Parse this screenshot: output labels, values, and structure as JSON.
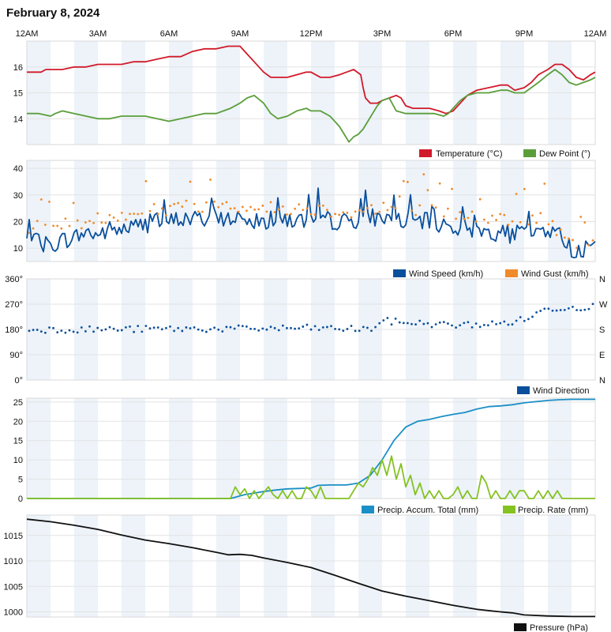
{
  "page": {
    "title": "February 8, 2024"
  },
  "time_axis": {
    "labels": [
      "12AM",
      "3AM",
      "6AM",
      "9AM",
      "12PM",
      "3PM",
      "6PM",
      "9PM",
      "12AM"
    ],
    "hours": [
      0,
      3,
      6,
      9,
      12,
      15,
      18,
      21,
      24
    ]
  },
  "chart_data": [
    {
      "type": "line",
      "ylim": [
        13,
        17
      ],
      "yticks": [
        14,
        15,
        16
      ],
      "series": [
        {
          "name": "Temperature (°C)",
          "color": "#d11a2a",
          "x": [
            0,
            0.6,
            0.8,
            1,
            1.5,
            2,
            2.5,
            3,
            3.5,
            4,
            4.5,
            5,
            5.5,
            6,
            6.5,
            7,
            7.5,
            8,
            8.5,
            9,
            9.3,
            9.6,
            10,
            10.3,
            10.6,
            11,
            11.4,
            11.8,
            12,
            12.4,
            12.8,
            13.2,
            13.5,
            13.8,
            14.1,
            14.2,
            14.3,
            14.5,
            14.8,
            15,
            15.3,
            15.6,
            15.8,
            16,
            16.3,
            16.6,
            17,
            17.4,
            17.7,
            18,
            18.3,
            18.6,
            19,
            19.5,
            20,
            20.3,
            20.6,
            21,
            21.3,
            21.6,
            22,
            22.3,
            22.6,
            22.9,
            23.2,
            23.5,
            23.8,
            24
          ],
          "y": [
            15.8,
            15.8,
            15.9,
            15.9,
            15.9,
            16,
            16,
            16.1,
            16.1,
            16.1,
            16.2,
            16.2,
            16.3,
            16.4,
            16.4,
            16.6,
            16.7,
            16.7,
            16.8,
            16.8,
            16.5,
            16.2,
            15.8,
            15.6,
            15.6,
            15.6,
            15.7,
            15.8,
            15.8,
            15.6,
            15.6,
            15.7,
            15.8,
            15.9,
            15.7,
            15.2,
            14.8,
            14.6,
            14.6,
            14.7,
            14.8,
            14.9,
            14.8,
            14.5,
            14.4,
            14.4,
            14.4,
            14.3,
            14.2,
            14.3,
            14.6,
            14.9,
            15.1,
            15.2,
            15.3,
            15.3,
            15.1,
            15.2,
            15.4,
            15.7,
            15.9,
            16.1,
            16.1,
            15.9,
            15.6,
            15.5,
            15.7,
            15.8
          ]
        },
        {
          "name": "Dew Point (°)",
          "color": "#5a9e3a",
          "x": [
            0,
            0.5,
            1,
            1.2,
            1.5,
            2,
            2.5,
            3,
            3.5,
            4,
            4.5,
            5,
            5.5,
            6,
            6.5,
            7,
            7.5,
            8,
            8.3,
            8.6,
            9,
            9.3,
            9.6,
            10,
            10.3,
            10.6,
            11,
            11.4,
            11.8,
            12,
            12.4,
            12.8,
            13,
            13.2,
            13.4,
            13.6,
            13.8,
            14,
            14.2,
            14.4,
            14.6,
            14.8,
            15,
            15.3,
            15.6,
            16,
            16.4,
            16.8,
            17.2,
            17.6,
            17.8,
            18,
            18.3,
            18.6,
            19,
            19.5,
            20,
            20.3,
            20.6,
            21,
            21.3,
            21.6,
            22,
            22.3,
            22.6,
            22.9,
            23.2,
            23.5,
            23.8,
            24
          ],
          "y": [
            14.2,
            14.2,
            14.1,
            14.2,
            14.3,
            14.2,
            14.1,
            14,
            14,
            14.1,
            14.1,
            14.1,
            14,
            13.9,
            14,
            14.1,
            14.2,
            14.2,
            14.3,
            14.4,
            14.6,
            14.8,
            14.9,
            14.6,
            14.2,
            14,
            14.1,
            14.3,
            14.4,
            14.3,
            14.3,
            14.1,
            13.9,
            13.7,
            13.4,
            13.1,
            13.3,
            13.4,
            13.6,
            13.9,
            14.2,
            14.5,
            14.7,
            14.8,
            14.3,
            14.2,
            14.2,
            14.2,
            14.2,
            14.1,
            14.2,
            14.4,
            14.7,
            14.9,
            15,
            15,
            15.1,
            15.1,
            15,
            15,
            15.2,
            15.4,
            15.7,
            15.9,
            15.7,
            15.4,
            15.3,
            15.4,
            15.5,
            15.6
          ]
        }
      ]
    },
    {
      "type": "line+scatter",
      "ylim": [
        5,
        43
      ],
      "yticks": [
        10,
        20,
        30,
        40
      ],
      "series": [
        {
          "name": "Wind Speed (km/h)",
          "color": "#0a4f9c",
          "x": [
            0,
            0.5,
            1,
            1.5,
            2,
            2.5,
            3,
            3.5,
            4,
            4.5,
            5,
            5.5,
            6,
            6.5,
            7,
            7.5,
            8,
            8.5,
            9,
            9.5,
            10,
            10.5,
            11,
            11.5,
            12,
            12.5,
            13,
            13.5,
            14,
            14.5,
            15,
            15.5,
            16,
            16.5,
            17,
            17.5,
            18,
            18.5,
            19,
            19.5,
            20,
            20.5,
            21,
            21.5,
            22,
            22.5,
            22.8,
            23,
            23.5,
            24
          ],
          "y": [
            13,
            12,
            11,
            13,
            14,
            16,
            15,
            17,
            17,
            18,
            19,
            20,
            20,
            21,
            21,
            21,
            22,
            21,
            22,
            20,
            20,
            21,
            21,
            20,
            21,
            21,
            20,
            20,
            21,
            22,
            21,
            22,
            20,
            20,
            20,
            19,
            18,
            17,
            17,
            16,
            16,
            15,
            16,
            16,
            17,
            15,
            11,
            10,
            9,
            11
          ],
          "amp": 3.4
        },
        {
          "name": "Wind Gust (km/h)",
          "color": "#f08a2a",
          "x": [
            0,
            1,
            2,
            3,
            4,
            5,
            6,
            7,
            8,
            9,
            10,
            11,
            12,
            13,
            14,
            15,
            16,
            17,
            18,
            19,
            20,
            21,
            22,
            22.8,
            23,
            24
          ],
          "y": [
            18,
            18,
            19,
            21,
            23,
            24,
            25,
            26,
            26,
            26,
            25,
            25,
            25,
            24,
            24,
            25,
            25,
            24,
            23,
            22,
            21,
            21,
            21,
            13,
            12,
            13
          ],
          "spread": 5
        }
      ]
    },
    {
      "type": "scatter",
      "ylim": [
        0,
        360
      ],
      "yticks": [
        0,
        90,
        180,
        270,
        360
      ],
      "ytick_labels": [
        "0°",
        "90°",
        "180°",
        "270°",
        "360°"
      ],
      "right_labels": [
        "N",
        "E",
        "S",
        "W",
        "N"
      ],
      "series": [
        {
          "name": "Wind Direction",
          "color": "#0a4f9c",
          "x": [
            0,
            3,
            6,
            9,
            12,
            14.5,
            15,
            16,
            18,
            20,
            21,
            22,
            24
          ],
          "y": [
            180,
            180,
            182,
            182,
            185,
            180,
            210,
            205,
            195,
            200,
            215,
            255,
            262
          ],
          "spread": 24
        }
      ]
    },
    {
      "type": "line",
      "ylim": [
        0,
        26
      ],
      "yticks": [
        0,
        5,
        10,
        15,
        20,
        25
      ],
      "series": [
        {
          "name": "Precip. Accum. Total (mm)",
          "color": "#1b8fc6",
          "x": [
            0,
            8.6,
            9.2,
            10,
            10.5,
            11,
            11.5,
            12,
            12.3,
            12.8,
            13,
            13.5,
            14,
            14.5,
            15,
            15.5,
            16,
            16.5,
            17,
            17.5,
            18,
            18.5,
            19,
            19.5,
            20,
            20.5,
            21,
            21.5,
            22,
            22.5,
            23,
            24
          ],
          "y": [
            0,
            0,
            1,
            1.8,
            2.2,
            2.5,
            2.6,
            2.7,
            3.4,
            3.5,
            3.5,
            3.5,
            4,
            6,
            10,
            15,
            18.5,
            20,
            20.5,
            21.2,
            21.8,
            22.3,
            23.2,
            23.8,
            24,
            24.3,
            24.8,
            25.1,
            25.4,
            25.6,
            25.7,
            25.7
          ]
        },
        {
          "name": "Precip. Rate (mm)",
          "color": "#84c221",
          "x": [
            0,
            8.6,
            8.8,
            9,
            9.2,
            9.4,
            9.6,
            9.8,
            10,
            10.2,
            10.4,
            10.6,
            10.8,
            11,
            11.2,
            11.4,
            11.6,
            11.8,
            12,
            12.2,
            12.4,
            12.6,
            12.8,
            13,
            13.2,
            13.4,
            13.6,
            13.8,
            14,
            14.2,
            14.4,
            14.6,
            14.8,
            15,
            15.2,
            15.4,
            15.6,
            15.8,
            16,
            16.2,
            16.4,
            16.6,
            16.8,
            17,
            17.2,
            17.4,
            17.6,
            17.8,
            18,
            18.2,
            18.4,
            18.6,
            18.8,
            19,
            19.2,
            19.4,
            19.6,
            19.8,
            20,
            20.2,
            20.4,
            20.6,
            20.8,
            21,
            21.2,
            21.4,
            21.6,
            21.8,
            22,
            22.2,
            22.4,
            22.6,
            22.8,
            24
          ],
          "y": [
            0,
            0,
            3,
            1,
            2.5,
            0,
            2,
            0,
            1.5,
            3,
            1,
            0,
            2,
            0,
            2,
            0,
            0,
            3,
            2,
            0,
            3,
            0,
            0,
            0,
            0,
            0,
            0,
            2,
            4,
            3,
            5,
            8,
            6,
            10,
            6,
            11,
            5,
            9,
            3,
            6,
            1,
            4,
            0,
            2,
            0,
            2,
            0,
            0,
            1,
            3,
            0,
            2,
            0,
            0,
            6,
            4,
            0,
            2,
            0,
            0,
            2,
            0,
            2,
            2,
            0,
            0,
            2,
            0,
            2,
            0,
            2,
            0,
            0,
            0
          ]
        }
      ]
    },
    {
      "type": "line",
      "ylim": [
        999,
        1019
      ],
      "yticks": [
        1000,
        1005,
        1010,
        1015
      ],
      "series": [
        {
          "name": "Pressure (hPa)",
          "color": "#111111",
          "x": [
            0,
            1,
            2,
            3,
            4,
            5,
            6,
            7,
            8,
            8.5,
            9,
            9.5,
            10,
            11,
            12,
            13,
            14,
            15,
            16,
            17,
            18,
            19,
            20,
            20.5,
            21,
            22,
            23,
            24
          ],
          "y": [
            1018.2,
            1017.7,
            1017,
            1016.2,
            1015.1,
            1014.1,
            1013.4,
            1012.6,
            1011.7,
            1011.2,
            1011.3,
            1011.1,
            1010.6,
            1009.7,
            1008.7,
            1007.2,
            1005.6,
            1004.1,
            1003.1,
            1002.2,
            1001.3,
            1000.5,
            1000,
            999.8,
            999.4,
            999.2,
            999.1,
            999.1
          ]
        }
      ]
    }
  ]
}
